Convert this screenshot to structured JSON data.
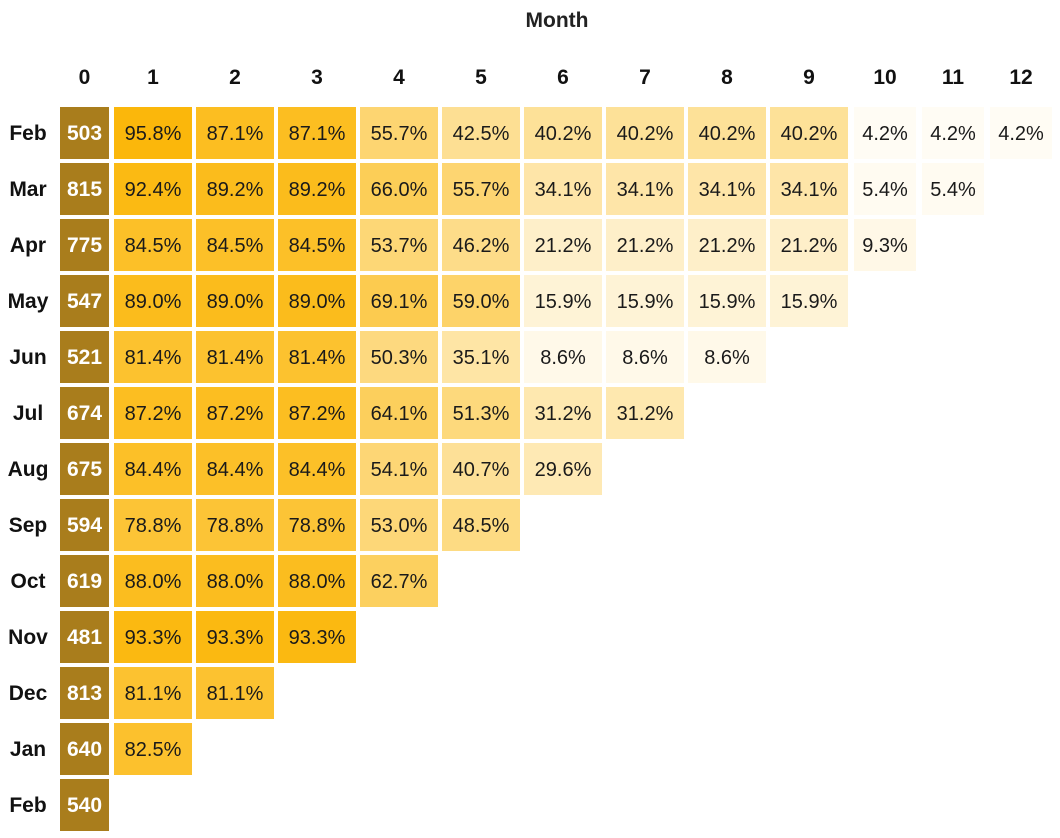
{
  "chart_data": {
    "type": "heatmap",
    "title": "Month",
    "columns": [
      "0",
      "1",
      "2",
      "3",
      "4",
      "5",
      "6",
      "7",
      "8",
      "9",
      "10",
      "11",
      "12"
    ],
    "rows": [
      {
        "label": "Feb",
        "count": "503",
        "values": [
          "95.8%",
          "87.1%",
          "87.1%",
          "55.7%",
          "42.5%",
          "40.2%",
          "40.2%",
          "40.2%",
          "40.2%",
          "4.2%",
          "4.2%",
          "4.2%"
        ]
      },
      {
        "label": "Mar",
        "count": "815",
        "values": [
          "92.4%",
          "89.2%",
          "89.2%",
          "66.0%",
          "55.7%",
          "34.1%",
          "34.1%",
          "34.1%",
          "34.1%",
          "5.4%",
          "5.4%"
        ]
      },
      {
        "label": "Apr",
        "count": "775",
        "values": [
          "84.5%",
          "84.5%",
          "84.5%",
          "53.7%",
          "46.2%",
          "21.2%",
          "21.2%",
          "21.2%",
          "21.2%",
          "9.3%"
        ]
      },
      {
        "label": "May",
        "count": "547",
        "values": [
          "89.0%",
          "89.0%",
          "89.0%",
          "69.1%",
          "59.0%",
          "15.9%",
          "15.9%",
          "15.9%",
          "15.9%"
        ]
      },
      {
        "label": "Jun",
        "count": "521",
        "values": [
          "81.4%",
          "81.4%",
          "81.4%",
          "50.3%",
          "35.1%",
          "8.6%",
          "8.6%",
          "8.6%"
        ]
      },
      {
        "label": "Jul",
        "count": "674",
        "values": [
          "87.2%",
          "87.2%",
          "87.2%",
          "64.1%",
          "51.3%",
          "31.2%",
          "31.2%"
        ]
      },
      {
        "label": "Aug",
        "count": "675",
        "values": [
          "84.4%",
          "84.4%",
          "84.4%",
          "54.1%",
          "40.7%",
          "29.6%"
        ]
      },
      {
        "label": "Sep",
        "count": "594",
        "values": [
          "78.8%",
          "78.8%",
          "78.8%",
          "53.0%",
          "48.5%"
        ]
      },
      {
        "label": "Oct",
        "count": "619",
        "values": [
          "88.0%",
          "88.0%",
          "88.0%",
          "62.7%"
        ]
      },
      {
        "label": "Nov",
        "count": "481",
        "values": [
          "93.3%",
          "93.3%",
          "93.3%"
        ]
      },
      {
        "label": "Dec",
        "count": "813",
        "values": [
          "81.1%",
          "81.1%"
        ]
      },
      {
        "label": "Jan",
        "count": "640",
        "values": [
          "82.5%"
        ]
      },
      {
        "label": "Feb",
        "count": "540",
        "values": []
      }
    ],
    "colors": {
      "count_cell": "#a97d1c",
      "scale_high": "#fbb400",
      "scale_low": "#ffffff"
    }
  }
}
